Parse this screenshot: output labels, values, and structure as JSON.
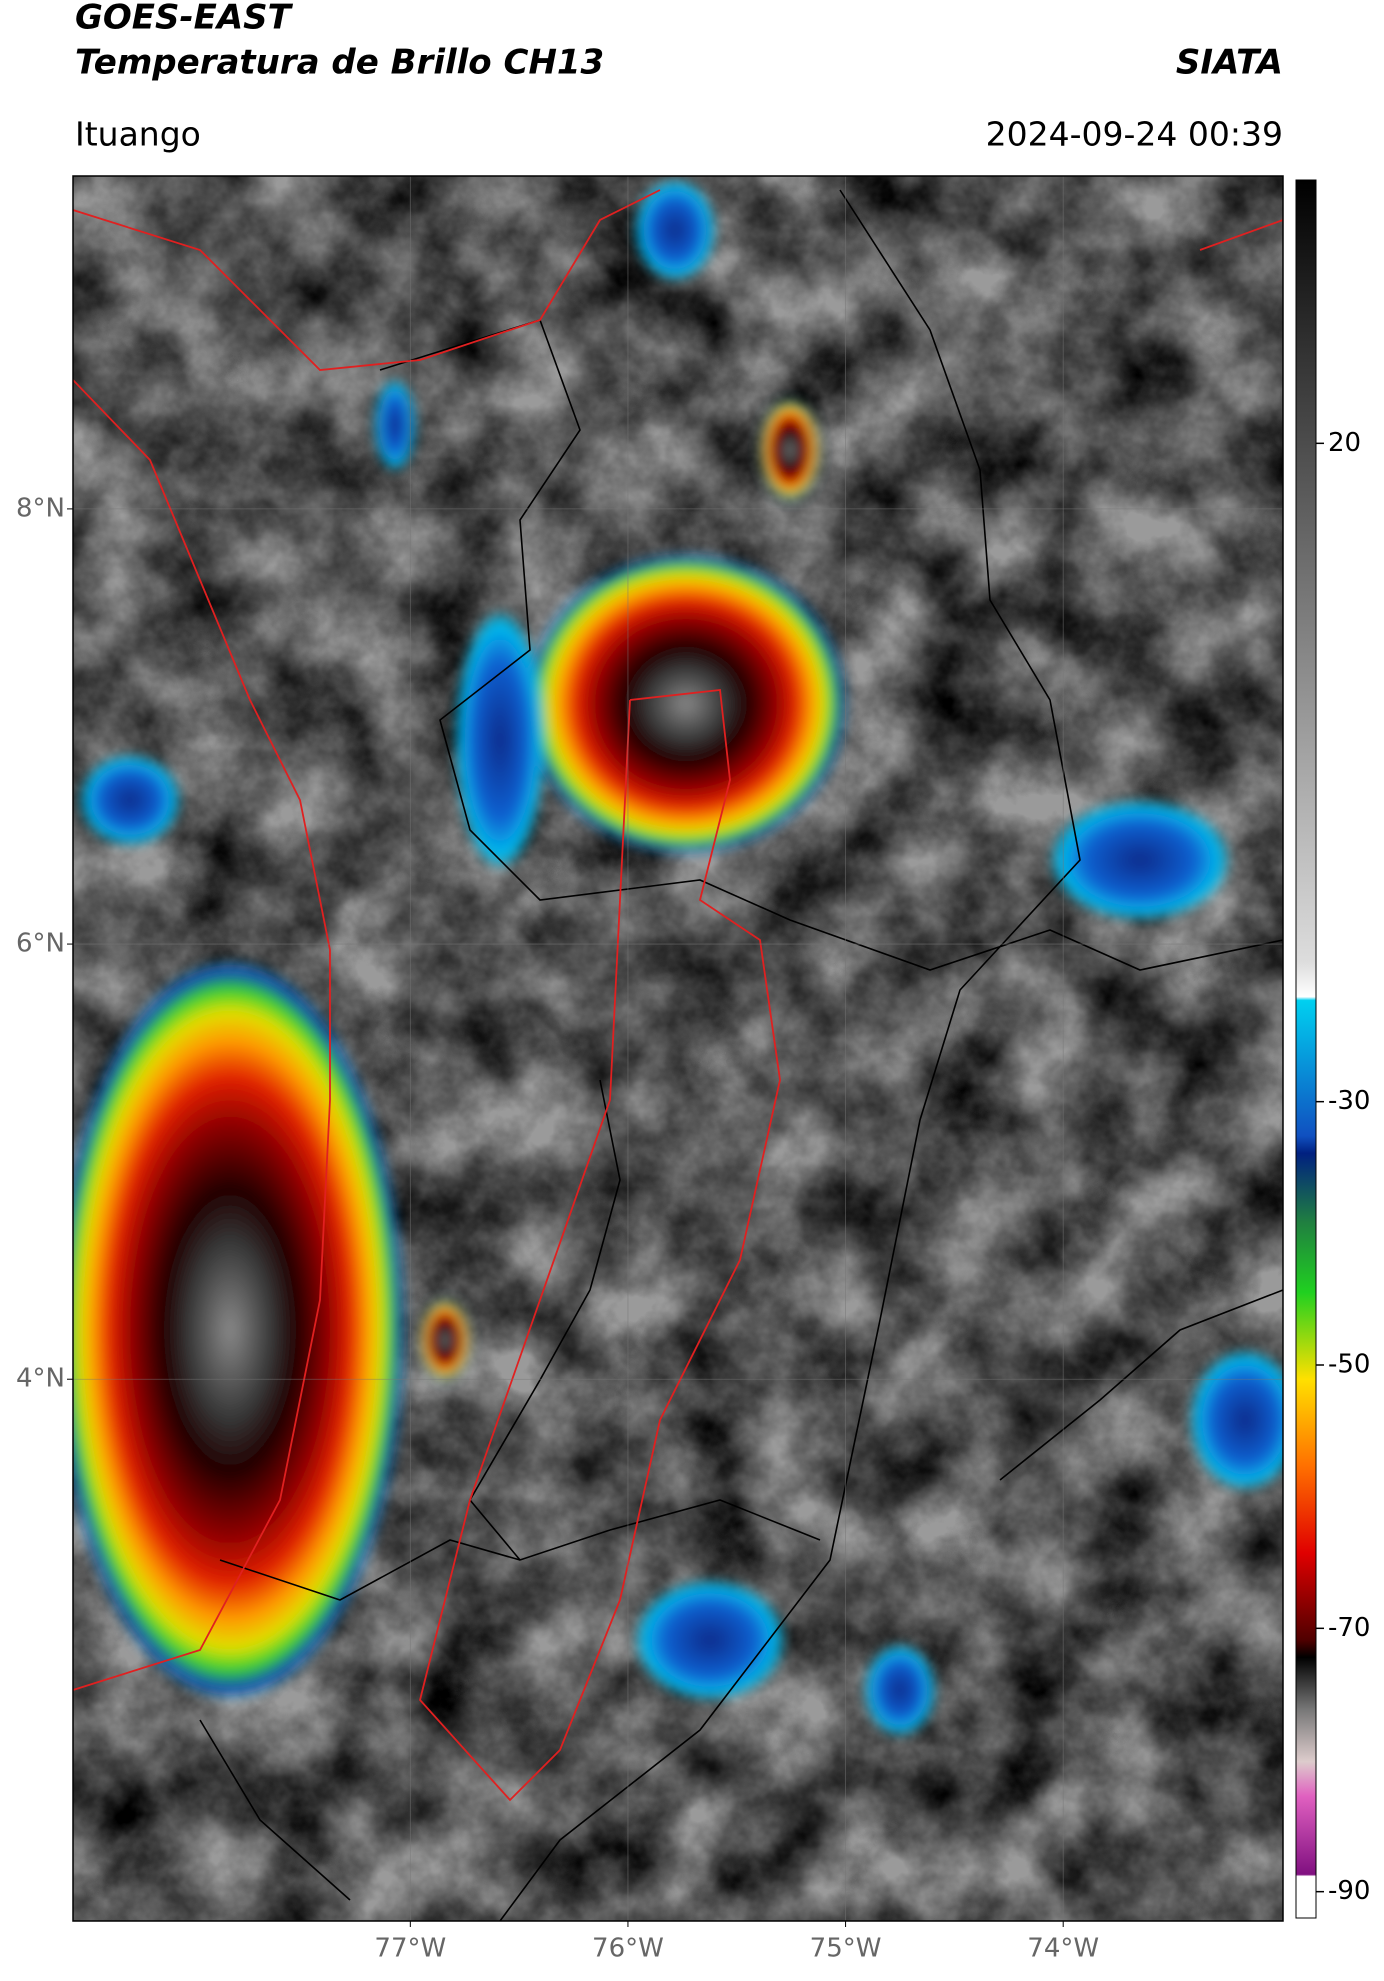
{
  "header": {
    "title": "GOES-EAST",
    "subtitle": "Temperatura de Brillo CH13",
    "source": "SIATA",
    "region": "Ituango",
    "datetime": "2024-09-24 00:39"
  },
  "map": {
    "xlim": [
      -78.55,
      -72.99
    ],
    "ylim": [
      1.51,
      9.53
    ],
    "xticks": [
      {
        "value": -77,
        "label": "77°W"
      },
      {
        "value": -76,
        "label": "76°W"
      },
      {
        "value": -75,
        "label": "75°W"
      },
      {
        "value": -74,
        "label": "74°W"
      }
    ],
    "yticks": [
      {
        "value": 8,
        "label": "8°N"
      },
      {
        "value": 6,
        "label": "6°N"
      },
      {
        "value": 4,
        "label": "4°N"
      }
    ],
    "grid": true
  },
  "colorbar": {
    "lim": [
      -92,
      40
    ],
    "ticks": [
      20,
      -30,
      -50,
      -70,
      -90
    ]
  }
}
